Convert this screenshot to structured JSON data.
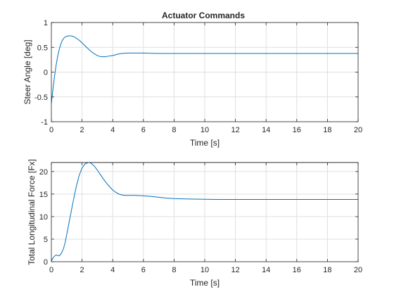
{
  "colors": {
    "series": "#0072bd",
    "grid": "#dfdfdf",
    "axis": "#262626"
  },
  "chart_data": [
    {
      "type": "line",
      "title": "Actuator Commands",
      "xlabel": "Time [s]",
      "ylabel": "Steer Angle [deg]",
      "xlim": [
        0,
        20
      ],
      "ylim": [
        -1,
        1
      ],
      "xticks": [
        0,
        2,
        4,
        6,
        8,
        10,
        12,
        14,
        16,
        18,
        20
      ],
      "yticks": [
        -1,
        -0.5,
        0,
        0.5,
        1
      ],
      "grid": true,
      "series": [
        {
          "x": [
            0,
            0.1,
            0.2,
            0.3,
            0.4,
            0.5,
            0.6,
            0.7,
            0.8,
            0.9,
            1.0,
            1.1,
            1.2,
            1.3,
            1.4,
            1.5,
            1.7,
            1.9,
            2.1,
            2.3,
            2.5,
            2.7,
            2.9,
            3.1,
            3.3,
            3.5,
            3.7,
            3.9,
            4.1,
            4.3,
            4.5,
            4.7,
            5.0,
            5.5,
            6.0,
            6.5,
            7.0,
            8.0,
            10.0,
            12.0,
            14.0,
            16.0,
            18.0,
            20.0
          ],
          "y": [
            -0.63,
            -0.35,
            -0.1,
            0.12,
            0.3,
            0.44,
            0.55,
            0.63,
            0.68,
            0.71,
            0.72,
            0.73,
            0.73,
            0.73,
            0.72,
            0.71,
            0.67,
            0.62,
            0.56,
            0.5,
            0.44,
            0.39,
            0.35,
            0.32,
            0.31,
            0.31,
            0.32,
            0.33,
            0.34,
            0.36,
            0.37,
            0.38,
            0.385,
            0.385,
            0.385,
            0.38,
            0.375,
            0.375,
            0.375,
            0.375,
            0.375,
            0.375,
            0.375,
            0.375
          ]
        }
      ]
    },
    {
      "type": "line",
      "title": "",
      "xlabel": "Time [s]",
      "ylabel": "Total Longitudinal Force [Fx]",
      "xlim": [
        0,
        20
      ],
      "ylim": [
        0,
        22
      ],
      "xticks": [
        0,
        2,
        4,
        6,
        8,
        10,
        12,
        14,
        16,
        18,
        20
      ],
      "yticks": [
        0,
        5,
        10,
        15,
        20
      ],
      "grid": true,
      "series": [
        {
          "x": [
            0,
            0.1,
            0.2,
            0.3,
            0.4,
            0.5,
            0.6,
            0.7,
            0.8,
            0.9,
            1.0,
            1.2,
            1.4,
            1.6,
            1.8,
            2.0,
            2.2,
            2.4,
            2.5,
            2.6,
            2.8,
            3.0,
            3.2,
            3.4,
            3.6,
            3.8,
            4.0,
            4.2,
            4.4,
            4.6,
            4.8,
            5.0,
            5.5,
            6.0,
            6.5,
            7.0,
            7.5,
            8.0,
            9.0,
            10.0,
            11.0,
            12.0,
            14.0,
            16.0,
            18.0,
            20.0
          ],
          "y": [
            0.2,
            0.8,
            1.2,
            1.5,
            1.4,
            1.3,
            1.6,
            2.2,
            3.0,
            4.3,
            6.0,
            9.5,
            13.0,
            16.3,
            19.0,
            20.8,
            21.7,
            22.0,
            22.0,
            21.8,
            21.2,
            20.3,
            19.3,
            18.3,
            17.4,
            16.6,
            15.9,
            15.4,
            15.0,
            14.8,
            14.7,
            14.7,
            14.7,
            14.6,
            14.5,
            14.3,
            14.1,
            14.0,
            13.9,
            13.85,
            13.8,
            13.8,
            13.8,
            13.8,
            13.8,
            13.8
          ]
        }
      ]
    }
  ]
}
